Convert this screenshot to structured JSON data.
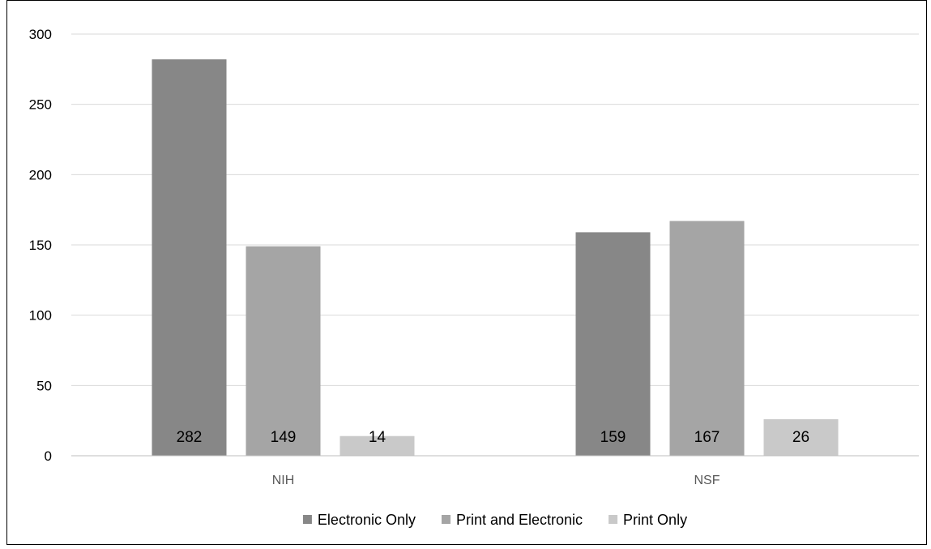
{
  "chart_data": {
    "type": "bar",
    "title": "",
    "xlabel": "",
    "ylabel": "",
    "categories": [
      "NIH",
      "NSF"
    ],
    "series": [
      {
        "name": "Electronic Only",
        "values": [
          282,
          159
        ],
        "color": "#878787"
      },
      {
        "name": "Print and Electronic",
        "values": [
          149,
          167
        ],
        "color": "#a5a5a5"
      },
      {
        "name": "Print Only",
        "values": [
          14,
          26
        ],
        "color": "#c9c9c9"
      }
    ],
    "ylim": [
      0,
      300
    ],
    "yticks": [
      0,
      50,
      100,
      150,
      200,
      250,
      300
    ],
    "grid": true,
    "gridline_color": "#d9d9d9",
    "legend_position": "bottom",
    "data_labels": true
  }
}
